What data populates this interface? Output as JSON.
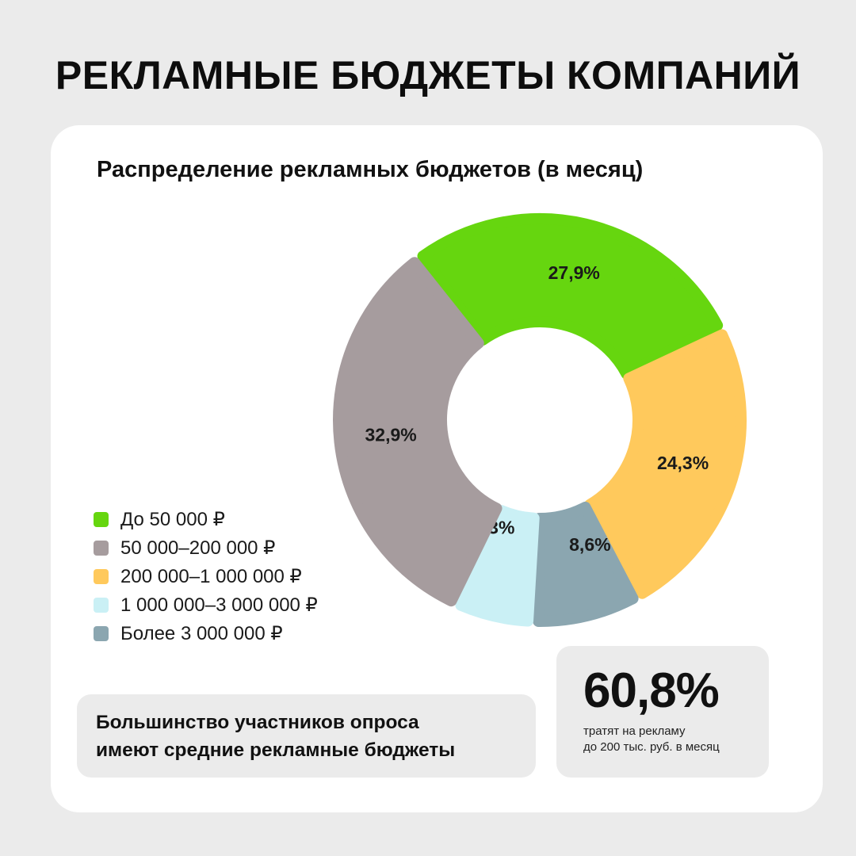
{
  "page": {
    "title": "РЕКЛАМНЫЕ БЮДЖЕТЫ КОМПАНИЙ"
  },
  "chart_data": {
    "type": "pie",
    "title": "Распределение рекламных бюджетов (в месяц)",
    "donut": true,
    "start_angle_deg": -37,
    "gap_deg": 3,
    "categories": [
      "До 50 000 ₽",
      "200 000–1 000 000 ₽",
      "Более 3 000 000 ₽",
      "1 000 000–3 000 000 ₽",
      "50 000–200 000 ₽"
    ],
    "values": [
      27.9,
      24.3,
      8.6,
      6.3,
      32.9
    ],
    "value_labels": [
      "27,9%",
      "24,3%",
      "8,6%",
      "6,3%",
      "32,9%"
    ],
    "colors": [
      "#66d60f",
      "#ffc95c",
      "#8ba6b0",
      "#caf0f5",
      "#a69c9e"
    ],
    "label_placement": [
      "inside",
      "inside",
      "outside",
      "outside",
      "inside"
    ]
  },
  "legend": {
    "items": [
      {
        "label": "До 50 000 ₽",
        "color": "#66d60f"
      },
      {
        "label": "50 000–200 000 ₽",
        "color": "#a69c9e"
      },
      {
        "label": "200 000–1 000 000 ₽",
        "color": "#ffc95c"
      },
      {
        "label": "1 000 000–3 000 000 ₽",
        "color": "#caf0f5"
      },
      {
        "label": "Более 3 000 000 ₽",
        "color": "#8ba6b0"
      }
    ]
  },
  "note": {
    "line1": "Большинство участников опроса",
    "line2": "имеют средние рекламные бюджеты"
  },
  "stat": {
    "value": "60,8%",
    "caption_line1": "тратят на рекламу",
    "caption_line2": "до 200 тыс. руб. в месяц"
  }
}
